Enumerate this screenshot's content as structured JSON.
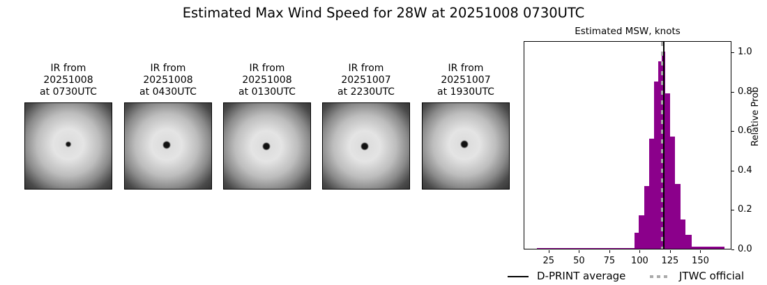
{
  "figure": {
    "title": "Estimated Max Wind Speed for 28W at 20251008 0730UTC"
  },
  "ir_panels": [
    {
      "line1": "IR from",
      "line2": "20251008",
      "line3": "at 0730UTC",
      "eye_x": 62,
      "eye_y": 59,
      "eye_size": 5
    },
    {
      "line1": "IR from",
      "line2": "20251008",
      "line3": "at 0430UTC",
      "eye_x": 60,
      "eye_y": 60,
      "eye_size": 8
    },
    {
      "line1": "IR from",
      "line2": "20251008",
      "line3": "at 0130UTC",
      "eye_x": 61,
      "eye_y": 62,
      "eye_size": 8
    },
    {
      "line1": "IR from",
      "line2": "20251007",
      "line3": "at 2230UTC",
      "eye_x": 60,
      "eye_y": 62,
      "eye_size": 8
    },
    {
      "line1": "IR from",
      "line2": "20251007",
      "line3": "at 1930UTC",
      "eye_x": 60,
      "eye_y": 59,
      "eye_size": 8
    }
  ],
  "chart_data": {
    "type": "bar",
    "title": "Estimated MSW, knots",
    "xlabel": "",
    "ylabel": "Relative Prob",
    "xlim": [
      5,
      175
    ],
    "ylim": [
      0,
      1.05
    ],
    "xticks": [
      25,
      50,
      75,
      100,
      125,
      150
    ],
    "yticks": [
      0.0,
      0.2,
      0.4,
      0.6,
      0.8,
      1.0
    ],
    "bars": [
      {
        "x0": 15.4,
        "x1": 95.7,
        "value": 0.005
      },
      {
        "x0": 95.7,
        "x1": 99.0,
        "value": 0.08
      },
      {
        "x0": 99.0,
        "x1": 103.6,
        "value": 0.17
      },
      {
        "x0": 103.6,
        "x1": 107.6,
        "value": 0.32
      },
      {
        "x0": 107.6,
        "x1": 112.0,
        "value": 0.56
      },
      {
        "x0": 112.0,
        "x1": 115.5,
        "value": 0.85
      },
      {
        "x0": 115.5,
        "x1": 118.3,
        "value": 0.95
      },
      {
        "x0": 118.3,
        "x1": 121.2,
        "value": 1.0
      },
      {
        "x0": 121.2,
        "x1": 125.0,
        "value": 0.79
      },
      {
        "x0": 125.0,
        "x1": 129.0,
        "value": 0.57
      },
      {
        "x0": 129.0,
        "x1": 133.6,
        "value": 0.33
      },
      {
        "x0": 133.6,
        "x1": 137.6,
        "value": 0.15
      },
      {
        "x0": 137.6,
        "x1": 142.6,
        "value": 0.07
      },
      {
        "x0": 142.6,
        "x1": 169.8,
        "value": 0.01
      }
    ],
    "bar_color": "#8b008b",
    "dprint_average": 120,
    "jtwc_official": 119,
    "legend": [
      {
        "label": "D-PRINT average",
        "style": "solid",
        "color": "#000000"
      },
      {
        "label": "JTWC official",
        "style": "dashed",
        "color": "#aaaaaa"
      }
    ],
    "grid": false,
    "legend_position": "below"
  }
}
